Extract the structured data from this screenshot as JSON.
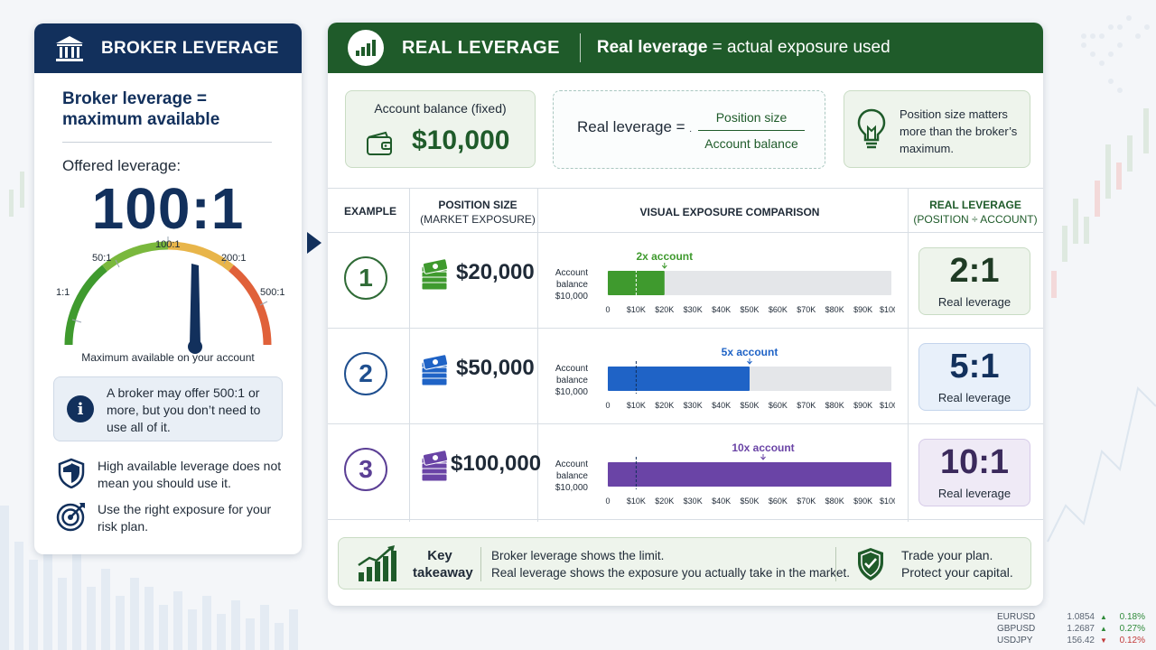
{
  "broker": {
    "title": "BROKER LEVERAGE",
    "subtitle_line1": "Broker leverage =",
    "subtitle_line2": "maximum available",
    "offered_label": "Offered leverage:",
    "offered_value": "100:1",
    "gauge": {
      "labels": [
        "1:1",
        "50:1",
        "100:1",
        "200:1",
        "500:1"
      ],
      "needle_at": "100:1",
      "caption": "Maximum available on your account"
    },
    "info": "A broker may offer 500:1 or more, but you don’t need to use all of it.",
    "notes": [
      {
        "icon": "shield-icon",
        "text": "High available leverage does not mean you should use it."
      },
      {
        "icon": "target-icon",
        "text": "Use the right exposure for your risk plan."
      }
    ]
  },
  "real": {
    "title": "REAL LEVERAGE",
    "subtitle_bold": "Real leverage",
    "subtitle_rest": " = actual exposure used",
    "balance_label": "Account balance (fixed)",
    "balance_value": "$10,000",
    "formula_lhs": "Real leverage  =",
    "formula_numerator": "Position size",
    "formula_denominator": "Account balance",
    "tip": "Position size matters more than the broker’s maximum."
  },
  "table": {
    "headers": {
      "example": "EXAMPLE",
      "position_line1": "POSITION SIZE",
      "position_line2": "(MARKET EXPOSURE)",
      "visual": "VISUAL EXPOSURE COMPARISON",
      "real_line1": "REAL LEVERAGE",
      "real_line2": "(POSITION ÷ ACCOUNT)"
    },
    "axis_ticks": [
      "0",
      "$10K",
      "$20K",
      "$30K",
      "$40K",
      "$50K",
      "$60K",
      "$70K",
      "$80K",
      "$90K",
      "$100K"
    ],
    "balance_marker_label": [
      "Account",
      "balance",
      "$10,000"
    ],
    "rows": [
      {
        "num": "1",
        "position": "$20,000",
        "exposure": 20000,
        "annotation": "2x account",
        "ratio": "2:1",
        "ratio_label": "Real leverage",
        "color": "#3f9a2e",
        "num_color": "#2f6b36",
        "res_bg": "#eef4ec",
        "res_border": "#c9dcc4",
        "ratio_color": "#1f3b24"
      },
      {
        "num": "2",
        "position": "$50,000",
        "exposure": 50000,
        "annotation": "5x account",
        "ratio": "5:1",
        "ratio_label": "Real leverage",
        "color": "#1f63c6",
        "num_color": "#1f4f8f",
        "res_bg": "#e8f0fa",
        "res_border": "#c3d4ec",
        "ratio_color": "#12305c"
      },
      {
        "num": "3",
        "position": "$100,000",
        "exposure": 100000,
        "annotation": "10x account",
        "ratio": "10:1",
        "ratio_label": "Real leverage",
        "color": "#6a44a6",
        "num_color": "#5b3f95",
        "res_bg": "#efeaf6",
        "res_border": "#d6cbe8",
        "ratio_color": "#3b2a5c"
      }
    ]
  },
  "takeaway": {
    "label_line1": "Key",
    "label_line2": "takeaway",
    "line1": "Broker leverage shows the limit.",
    "line2": "Real leverage shows the exposure you actually take in the market.",
    "right_line1": "Trade your plan.",
    "right_line2": "Protect your capital."
  },
  "ticker": [
    {
      "symbol": "EURUSD",
      "price": "1.0854",
      "change": "0.18%",
      "direction": "up"
    },
    {
      "symbol": "GBPUSD",
      "price": "1.2687",
      "change": "0.27%",
      "direction": "up"
    },
    {
      "symbol": "USDJPY",
      "price": "156.42",
      "change": "0.12%",
      "direction": "down"
    }
  ]
}
